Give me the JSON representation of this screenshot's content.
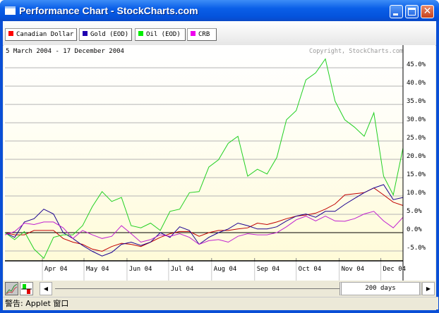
{
  "window": {
    "title": "Performance Chart - StockCharts.com"
  },
  "legend": [
    {
      "label": "Canadian Dollar",
      "color": "#e00000"
    },
    {
      "label": "Gold (EOD)",
      "color": "#2000b0"
    },
    {
      "label": "Oil (EOD)",
      "color": "#00e000"
    },
    {
      "label": "CRB",
      "color": "#e000e0"
    }
  ],
  "chart_header": {
    "range": "5 March 2004 - 17 December 2004",
    "copyright": "Copyright, StockCharts.com"
  },
  "toolbar": {
    "period": "200 days"
  },
  "status": {
    "text": "警告: Applet 窗口"
  },
  "chart_data": {
    "type": "line",
    "ylim": [
      -7.7,
      48.1
    ],
    "y_ticks": [
      "-5.0%",
      "0.0%",
      "5.0%",
      "10.0%",
      "15.0%",
      "20.0%",
      "25.0%",
      "30.0%",
      "35.0%",
      "40.0%",
      "45.0%"
    ],
    "y_tick_values": [
      -5,
      0,
      5,
      10,
      15,
      20,
      25,
      30,
      35,
      40,
      45
    ],
    "x_ticks": [
      {
        "label": "Apr 04",
        "date": "2004-04-01"
      },
      {
        "label": "May 04",
        "date": "2004-05-01"
      },
      {
        "label": "Jun 04",
        "date": "2004-06-01"
      },
      {
        "label": "Jul 04",
        "date": "2004-07-01"
      },
      {
        "label": "Aug 04",
        "date": "2004-08-01"
      },
      {
        "label": "Sep 04",
        "date": "2004-09-01"
      },
      {
        "label": "Oct 04",
        "date": "2004-10-01"
      },
      {
        "label": "Nov 04",
        "date": "2004-11-01"
      },
      {
        "label": "Dec 04",
        "date": "2004-12-01"
      }
    ],
    "xlim": [
      "2004-03-05",
      "2004-12-17"
    ],
    "grid": true,
    "x": [
      "2004-03-05",
      "2004-03-12",
      "2004-03-19",
      "2004-03-26",
      "2004-04-02",
      "2004-04-09",
      "2004-04-16",
      "2004-04-23",
      "2004-04-30",
      "2004-05-07",
      "2004-05-14",
      "2004-05-21",
      "2004-05-28",
      "2004-06-04",
      "2004-06-11",
      "2004-06-18",
      "2004-06-25",
      "2004-07-02",
      "2004-07-09",
      "2004-07-16",
      "2004-07-23",
      "2004-07-30",
      "2004-08-06",
      "2004-08-13",
      "2004-08-20",
      "2004-08-27",
      "2004-09-03",
      "2004-09-10",
      "2004-09-17",
      "2004-09-24",
      "2004-10-01",
      "2004-10-08",
      "2004-10-15",
      "2004-10-22",
      "2004-10-29",
      "2004-11-05",
      "2004-11-12",
      "2004-11-19",
      "2004-11-26",
      "2004-12-03",
      "2004-12-10",
      "2004-12-17"
    ],
    "series": [
      {
        "name": "Canadian Dollar",
        "color": "#c00000",
        "values": [
          0,
          -0.6,
          -0.6,
          0.6,
          0.6,
          0.6,
          -1.6,
          -2.6,
          -3.2,
          -4.5,
          -5.1,
          -3.8,
          -2.9,
          -3.2,
          -3.8,
          -2.6,
          -1.3,
          -0.3,
          0.3,
          0.3,
          -1,
          0,
          0.6,
          0.6,
          1,
          1.3,
          2.6,
          2.2,
          2.9,
          3.8,
          4.5,
          4.8,
          5.3,
          6.4,
          7.8,
          10.3,
          10.6,
          10.9,
          12.2,
          10.3,
          8.3,
          7.4
        ]
      },
      {
        "name": "Gold (EOD)",
        "color": "#1a0090",
        "values": [
          0,
          -1.3,
          2.9,
          3.8,
          6.4,
          5.1,
          0,
          -1.6,
          -3.5,
          -5.1,
          -6.4,
          -5.4,
          -3.2,
          -2.6,
          -3.5,
          -2.6,
          0,
          -1.3,
          1.6,
          0.6,
          -3.2,
          -1.3,
          0,
          1,
          2.6,
          1.9,
          1,
          1,
          1.6,
          3.2,
          4.5,
          5.1,
          4.2,
          5.8,
          5.8,
          7.7,
          9.3,
          10.9,
          12.2,
          13.1,
          9,
          9.6
        ]
      },
      {
        "name": "Oil (EOD)",
        "color": "#22d022",
        "values": [
          0,
          -1.9,
          0.3,
          -4.5,
          -7,
          -1.3,
          -0.6,
          -0.6,
          1.9,
          7.1,
          11.2,
          8.5,
          9.6,
          1.9,
          1.3,
          2.6,
          0.6,
          5.8,
          6.4,
          10.9,
          11.2,
          17.9,
          19.9,
          24.4,
          26.3,
          15.4,
          17.3,
          16,
          20.5,
          30.8,
          33.3,
          41.7,
          43.6,
          47.4,
          35.9,
          30.8,
          28.8,
          26.3,
          32.7,
          15.4,
          10.3,
          23.1
        ]
      },
      {
        "name": "CRB",
        "color": "#c020d0",
        "values": [
          -0.6,
          0.3,
          2.6,
          2.2,
          2.9,
          2.9,
          1.3,
          -1.6,
          0.6,
          -0.6,
          -1.6,
          -1,
          1.9,
          -0.3,
          -2.6,
          -1.9,
          -0.6,
          -1,
          -0.3,
          -1.3,
          -3.2,
          -2.2,
          -1.9,
          -2.6,
          -1,
          -0.3,
          -0.6,
          -0.6,
          0,
          1.6,
          3.5,
          4.5,
          3.2,
          4.5,
          3.2,
          3.1,
          3.8,
          5.1,
          5.8,
          3.2,
          1.3,
          4.2
        ]
      }
    ]
  }
}
